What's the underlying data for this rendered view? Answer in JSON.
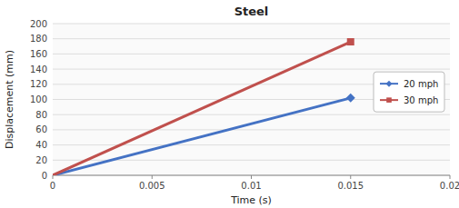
{
  "chart_data": {
    "type": "line",
    "title": "Steel",
    "x_label": "Time (s)",
    "y_label": "Displacement (mm)",
    "x": [
      0,
      0.015
    ],
    "series": [
      {
        "name": "20 mph",
        "color": "#4472C4",
        "marker": "diamond",
        "values": [
          0,
          102
        ]
      },
      {
        "name": "30 mph",
        "color": "#C0504D",
        "marker": "square",
        "values": [
          0,
          176
        ]
      }
    ],
    "xlim": [
      0,
      0.02
    ],
    "xticks": [
      0,
      0.005,
      0.01,
      0.015,
      0.02
    ],
    "ylim": [
      0,
      200
    ],
    "yticks": [
      0,
      20,
      40,
      60,
      80,
      100,
      120,
      140,
      160,
      180,
      200
    ],
    "grid": true,
    "legend": "right"
  }
}
